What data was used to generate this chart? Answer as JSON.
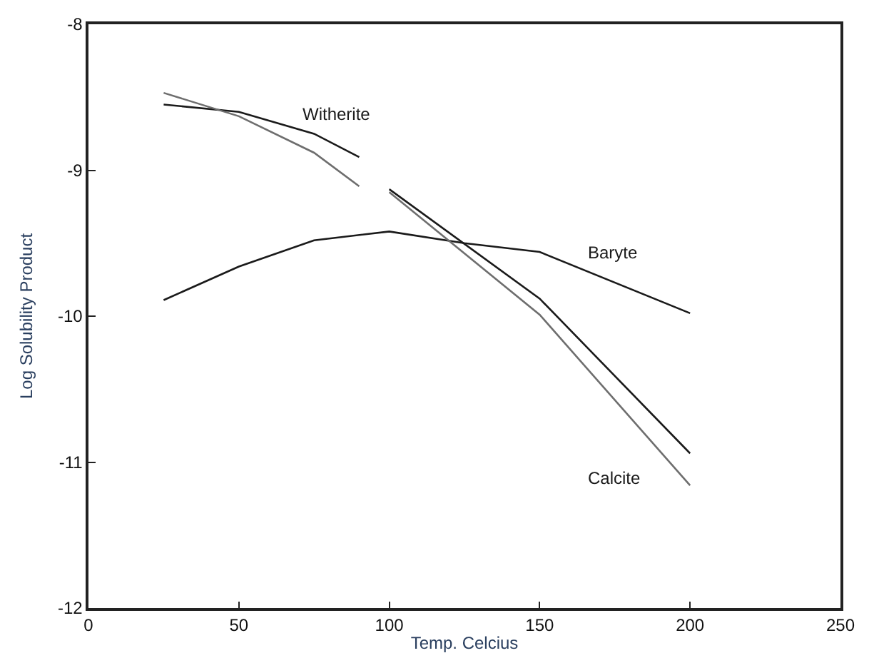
{
  "chart_data": {
    "type": "line",
    "xlabel": "Temp. Celcius",
    "ylabel": "Log Solubility Product",
    "series": [
      {
        "name": "Witherite",
        "color": "#1a1a1a",
        "x": [
          25,
          50,
          75,
          90
        ],
        "values": [
          -8.55,
          -8.6,
          -8.75,
          -8.91
        ]
      },
      {
        "color": "#6e6e6e",
        "x": [
          25,
          50,
          75,
          90
        ],
        "values": [
          -8.47,
          -8.63,
          -8.88,
          -9.11
        ]
      },
      {
        "name": "Baryte",
        "color": "#1a1a1a",
        "x": [
          25,
          50,
          75,
          100,
          125,
          150,
          200
        ],
        "values": [
          -9.89,
          -9.66,
          -9.48,
          -9.42,
          -9.5,
          -9.56,
          -9.98
        ]
      },
      {
        "name": "Calcite",
        "color": "#1a1a1a",
        "x": [
          100,
          150,
          200
        ],
        "values": [
          -9.13,
          -9.88,
          -10.94
        ]
      },
      {
        "color": "#6e6e6e",
        "x": [
          100,
          150,
          200
        ],
        "values": [
          -9.15,
          -9.99,
          -11.16
        ]
      }
    ],
    "xlim": [
      0,
      250
    ],
    "xticks": [
      0,
      50,
      100,
      150,
      200,
      250
    ],
    "ylim": [
      -12,
      -8
    ],
    "yticks": [
      -12,
      -11,
      -10,
      -9,
      -8
    ],
    "legend": false,
    "marker": "none",
    "line_style": "solid"
  }
}
